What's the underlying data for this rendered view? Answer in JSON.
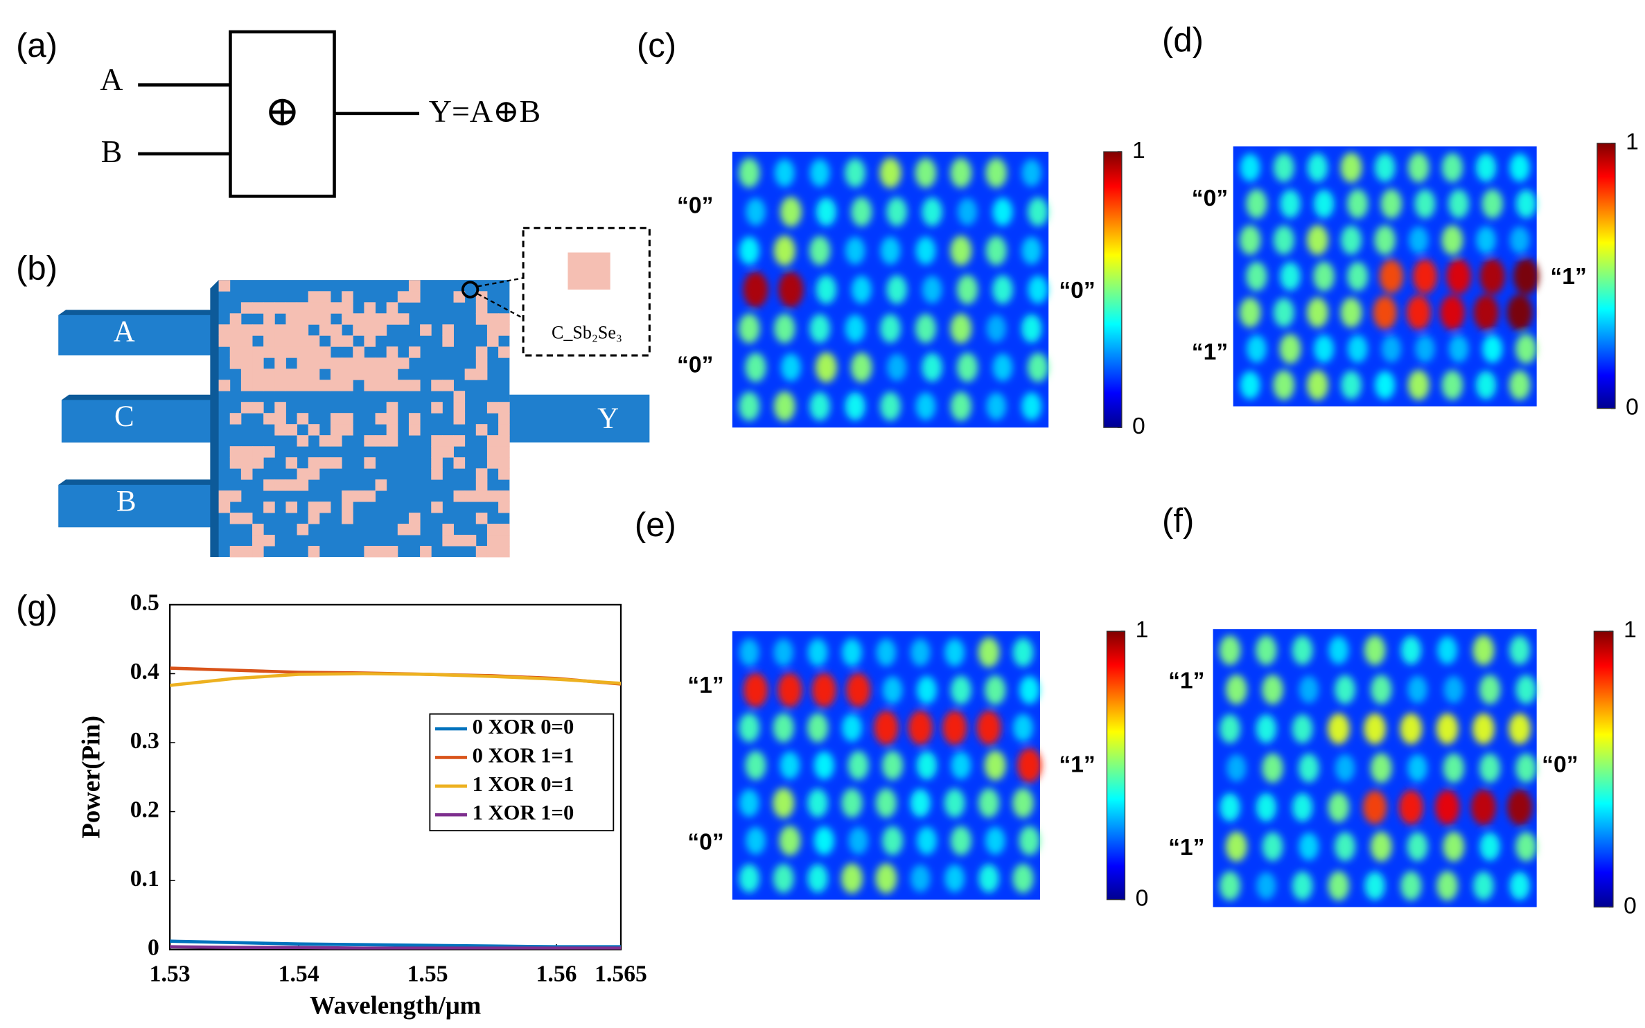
{
  "figure": {
    "panel_labels": [
      "(a)",
      "(b)",
      "(c)",
      "(d)",
      "(e)",
      "(f)",
      "(g)"
    ],
    "gate": {
      "inputs": [
        "A",
        "B"
      ],
      "symbol": "⊕",
      "output": "Y=A⊕B"
    },
    "device": {
      "ports": [
        "A",
        "C",
        "B",
        "Y"
      ],
      "material": "C_Sb₂Se₃"
    },
    "fields": [
      {
        "inputs": [
          "“0”",
          "“0”"
        ],
        "output": "“0”",
        "colorbar_lim": [
          0,
          1
        ],
        "colorbar_ticks": [
          0,
          1
        ]
      },
      {
        "inputs": [
          "“0”",
          "“1”"
        ],
        "output": "“1”",
        "colorbar_lim": [
          0,
          1
        ],
        "colorbar_ticks": [
          0,
          1
        ]
      },
      {
        "inputs": [
          "“1”",
          "“0”"
        ],
        "output": "“1”",
        "colorbar_lim": [
          0,
          1
        ],
        "colorbar_ticks": [
          0,
          1
        ]
      },
      {
        "inputs": [
          "“1”",
          "“1”"
        ],
        "output": "“0”",
        "colorbar_lim": [
          0,
          1
        ],
        "colorbar_ticks": [
          0,
          1
        ]
      }
    ]
  },
  "chart_data": {
    "type": "line",
    "x_label": "Wavelength/μm",
    "y_label": "Power(Pin)",
    "x": [
      1.53,
      1.535,
      1.54,
      1.545,
      1.55,
      1.555,
      1.56,
      1.565
    ],
    "xlim": [
      1.53,
      1.565
    ],
    "xticks": [
      1.53,
      1.54,
      1.55,
      1.56,
      1.565
    ],
    "ylim": [
      0,
      0.5
    ],
    "yticks": [
      0,
      0.1,
      0.2,
      0.3,
      0.4,
      0.5
    ],
    "legend": "right",
    "series": [
      {
        "name": "0 XOR 0=0",
        "color": "#0072bd",
        "values": [
          0.012,
          0.01,
          0.008,
          0.007,
          0.006,
          0.005,
          0.004,
          0.004
        ]
      },
      {
        "name": "0 XOR 1=1",
        "color": "#d95319",
        "values": [
          0.408,
          0.405,
          0.402,
          0.401,
          0.399,
          0.397,
          0.393,
          0.385
        ]
      },
      {
        "name": "1 XOR 0=1",
        "color": "#edb120",
        "values": [
          0.383,
          0.393,
          0.399,
          0.4,
          0.399,
          0.396,
          0.392,
          0.386
        ]
      },
      {
        "name": "1 XOR 1=0",
        "color": "#7e2f8e",
        "values": [
          0.004,
          0.003,
          0.003,
          0.002,
          0.002,
          0.002,
          0.002,
          0.002
        ]
      }
    ]
  }
}
